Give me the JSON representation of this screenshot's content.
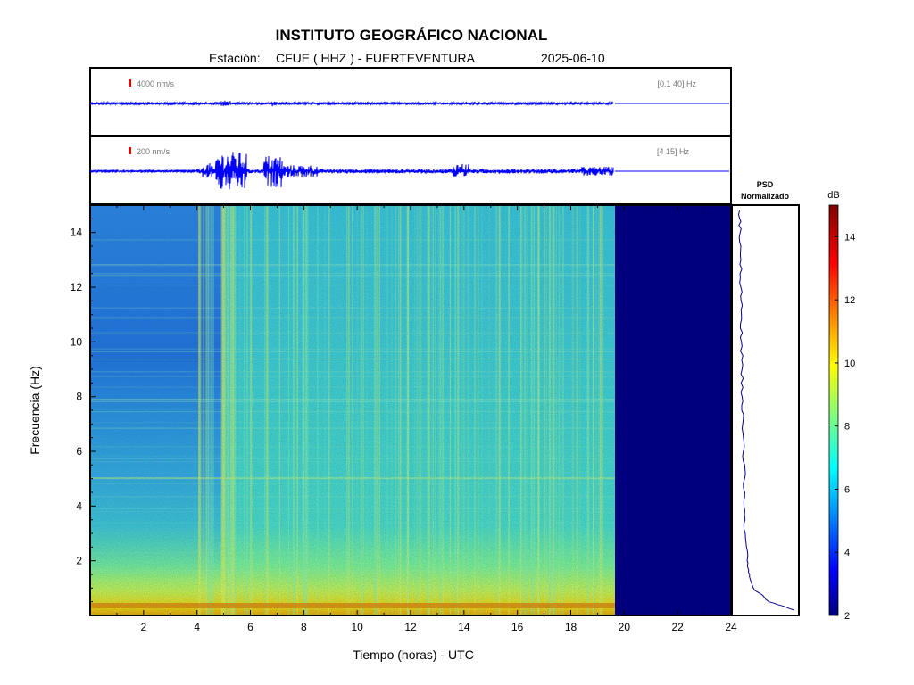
{
  "header": {
    "title": "INSTITUTO GEOGRÁFICO NACIONAL",
    "station_label": "Estación:",
    "station": "CFUE ( HHZ ) - FUERTEVENTURA",
    "date": "2025-06-10"
  },
  "traces": [
    {
      "scale_label": "4000 nm/s",
      "band_label": "[0.1 40] Hz"
    },
    {
      "scale_label": "200 nm/s",
      "band_label": "[4 15] Hz"
    }
  ],
  "psd": {
    "title_line1": "PSD",
    "title_line2": "Normalizado"
  },
  "colorbar": {
    "unit": "dB",
    "min": 2,
    "max": 15,
    "ticks": [
      2,
      4,
      6,
      8,
      10,
      12,
      14
    ]
  },
  "colors": {
    "trace": "#0000ff",
    "scale_marker": "#dd0000",
    "no_data": "#00007f"
  },
  "chart_data": {
    "type": "heatmap",
    "title": "INSTITUTO GEOGRÁFICO NACIONAL",
    "xlabel": "Tiempo (horas) - UTC",
    "ylabel": "Frecuencia  (Hz)",
    "xlim": [
      0,
      24
    ],
    "ylim": [
      0,
      15
    ],
    "xticks": [
      2,
      4,
      6,
      8,
      10,
      12,
      14,
      16,
      18,
      20,
      22,
      24
    ],
    "yticks": [
      2,
      4,
      6,
      8,
      10,
      12,
      14
    ],
    "data_end_hour": 19.6,
    "psd_profile": {
      "freq": [
        0.2,
        0.5,
        1,
        1.5,
        2,
        3,
        4,
        5,
        6,
        7,
        8,
        9,
        10,
        11,
        12,
        13,
        14,
        14.8
      ],
      "value": [
        0.95,
        0.55,
        0.3,
        0.24,
        0.2,
        0.17,
        0.15,
        0.16,
        0.14,
        0.13,
        0.12,
        0.12,
        0.11,
        0.11,
        0.1,
        0.1,
        0.09,
        0.08
      ]
    }
  }
}
